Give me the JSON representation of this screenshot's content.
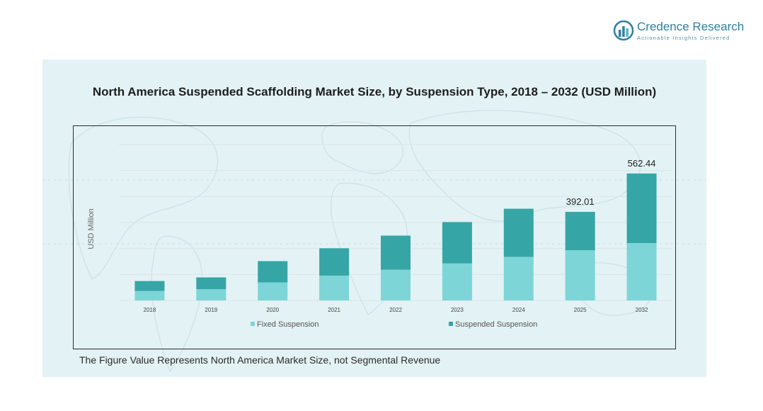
{
  "brand": {
    "name": "Credence Research",
    "tagline": "Actionable Insights Delivered",
    "primary_color": "#2f7fa0",
    "icon": "bar-chart-logo-icon"
  },
  "footnote": "The Figure Value Represents North America Market Size, not Segmental Revenue",
  "colors": {
    "panel_bg": "#e3f2f4",
    "fixed": "#7dd5d7",
    "suspended": "#36a5a5",
    "grid": "#d8e6ea"
  },
  "chart_data": {
    "type": "bar",
    "stacked": true,
    "title": "North America Suspended Scaffolding Market Size, by Suspension Type, 2018 – 2032 (USD Million)",
    "xlabel": "",
    "ylabel": "USD Million",
    "categories": [
      "2018",
      "2019",
      "2020",
      "2021",
      "2022",
      "2023",
      "2024",
      "2025",
      "2032"
    ],
    "series": [
      {
        "name": "Fixed Suspension",
        "color": "#7dd5d7",
        "values": [
          42,
          50,
          80,
          110,
          136,
          164,
          193,
          222,
          254
        ]
      },
      {
        "name": "Suspended Suspension",
        "color": "#36a5a5",
        "values": [
          44,
          52,
          94,
          121,
          151,
          183,
          213,
          170,
          308
        ]
      }
    ],
    "data_labels": [
      {
        "category": "2025",
        "text": "392.01"
      },
      {
        "category": "2032",
        "text": "562.44"
      }
    ],
    "ylim": [
      0,
      690
    ],
    "grid": true,
    "legend": "bottom"
  }
}
